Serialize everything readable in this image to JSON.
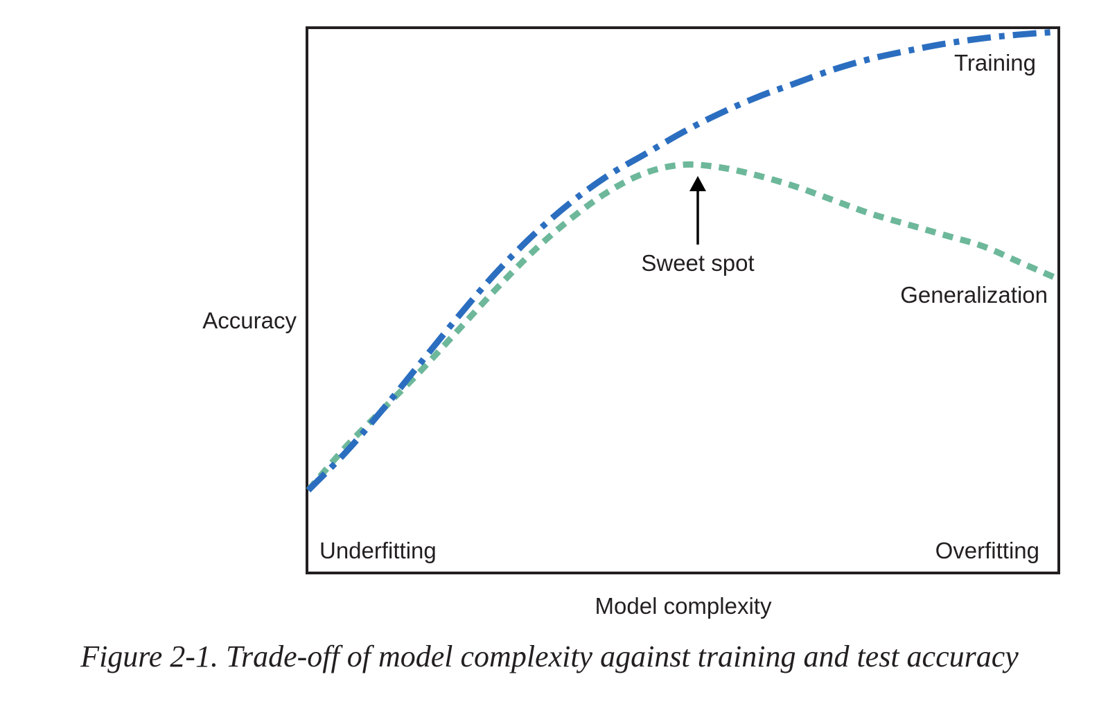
{
  "caption": "Figure 2-1. Trade-off of model complexity against training and test accuracy",
  "chart_data": {
    "type": "line",
    "title": "",
    "xlabel": "Model complexity",
    "ylabel": "Accuracy",
    "x_ticks_shown": false,
    "y_ticks_shown": false,
    "grid": false,
    "xlim": [
      0,
      100
    ],
    "ylim": [
      0,
      100
    ],
    "series": [
      {
        "name": "Training",
        "color": "#2b6ec0",
        "style": "dash-dot",
        "x": [
          0,
          5,
          10,
          15,
          20,
          25,
          30,
          35,
          40,
          45,
          50,
          55,
          60,
          65,
          70,
          75,
          80,
          85,
          90,
          95,
          100
        ],
        "y": [
          15,
          22,
          30,
          38.5,
          47,
          55,
          62,
          68,
          73,
          77,
          81,
          84.5,
          87.5,
          90,
          92.5,
          94.5,
          96,
          97.3,
          98.3,
          99,
          99.5
        ]
      },
      {
        "name": "Generalization",
        "color": "#6db89a",
        "style": "dashed",
        "x": [
          0,
          5,
          10,
          15,
          20,
          25,
          30,
          35,
          40,
          45,
          50,
          55,
          60,
          65,
          70,
          75,
          80,
          85,
          90,
          95,
          100
        ],
        "y": [
          15,
          23,
          30,
          37,
          44.5,
          52,
          59,
          65,
          70,
          73.5,
          75,
          74.5,
          73,
          71,
          68.5,
          66,
          64,
          62,
          60,
          57,
          54
        ]
      }
    ],
    "annotations": [
      {
        "text": "Sweet spot",
        "type": "arrow",
        "x": 51.5,
        "y": 73.5
      },
      {
        "text": "Underfitting",
        "position": "bottom-left"
      },
      {
        "text": "Overfitting",
        "position": "bottom-right"
      },
      {
        "text": "Training",
        "position": "top-right"
      },
      {
        "text": "Generalization",
        "position": "right"
      }
    ]
  }
}
